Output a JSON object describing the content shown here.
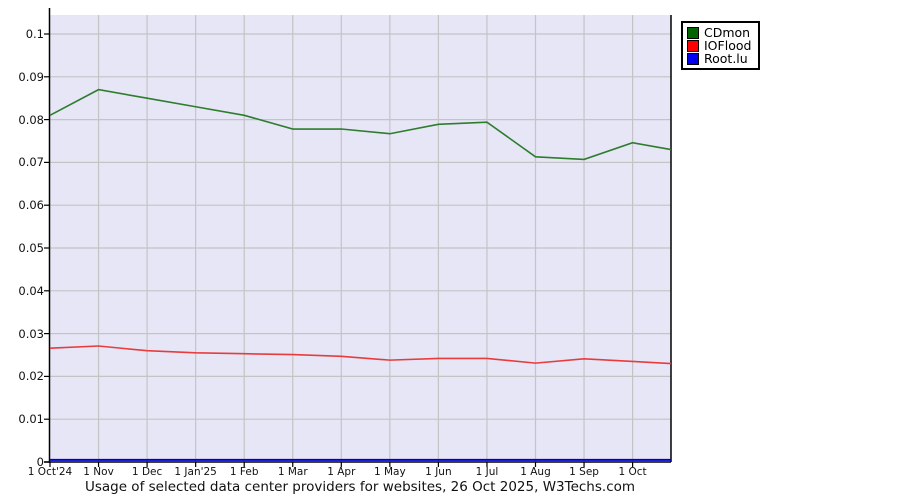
{
  "chart_data": {
    "type": "line",
    "title": "Usage of selected data center providers for websites, 26 Oct 2025, W3Techs.com",
    "x_tick_labels": [
      "1 Oct'24",
      "1 Nov",
      "1 Dec",
      "1 Jan'25",
      "1 Feb",
      "1 Mar",
      "1 Apr",
      "1 May",
      "1 Jun",
      "1 Jul",
      "1 Aug",
      "1 Sep",
      "1 Oct"
    ],
    "y_tick_labels": [
      "0",
      "0.01",
      "0.02",
      "0.03",
      "0.04",
      "0.05",
      "0.06",
      "0.07",
      "0.08",
      "0.09",
      "0.1"
    ],
    "y_tick_values": [
      0,
      0.01,
      0.02,
      0.03,
      0.04,
      0.05,
      0.06,
      0.07,
      0.08,
      0.09,
      0.1
    ],
    "ylim": [
      0,
      0.1045
    ],
    "x_unit_months": [
      0,
      1,
      2,
      3,
      4,
      5,
      6,
      7,
      8,
      9,
      10,
      11,
      12,
      12.79
    ],
    "end_date_label": "26 Oct 2025",
    "grid": true,
    "legend_position": "top-right-outside",
    "plot_bg_color": "#e6e6f7",
    "grid_color": "#c4c4c4",
    "axis_color": "#000000",
    "series": [
      {
        "name": "CDmon",
        "color": "#2d7d2d",
        "legend_color": "#006400",
        "values": [
          0.081,
          0.087,
          0.085,
          0.083,
          0.081,
          0.0778,
          0.0778,
          0.0767,
          0.0789,
          0.0794,
          0.0713,
          0.0707,
          0.0746,
          0.073
        ]
      },
      {
        "name": "IOFlood",
        "color": "#e83c3c",
        "legend_color": "#ff0000",
        "values": [
          0.0266,
          0.0271,
          0.026,
          0.0255,
          0.0253,
          0.0251,
          0.0247,
          0.0238,
          0.0242,
          0.0242,
          0.0231,
          0.0241,
          0.0235,
          0.023
        ]
      },
      {
        "name": "Root.lu",
        "color": "#0000cc",
        "legend_color": "#0000ee",
        "values": [
          0.0005,
          0.0005,
          0.0005,
          0.0005,
          0.0005,
          0.0005,
          0.0005,
          0.0005,
          0.0005,
          0.0005,
          0.0005,
          0.0005,
          0.0005,
          0.0005
        ]
      }
    ]
  }
}
